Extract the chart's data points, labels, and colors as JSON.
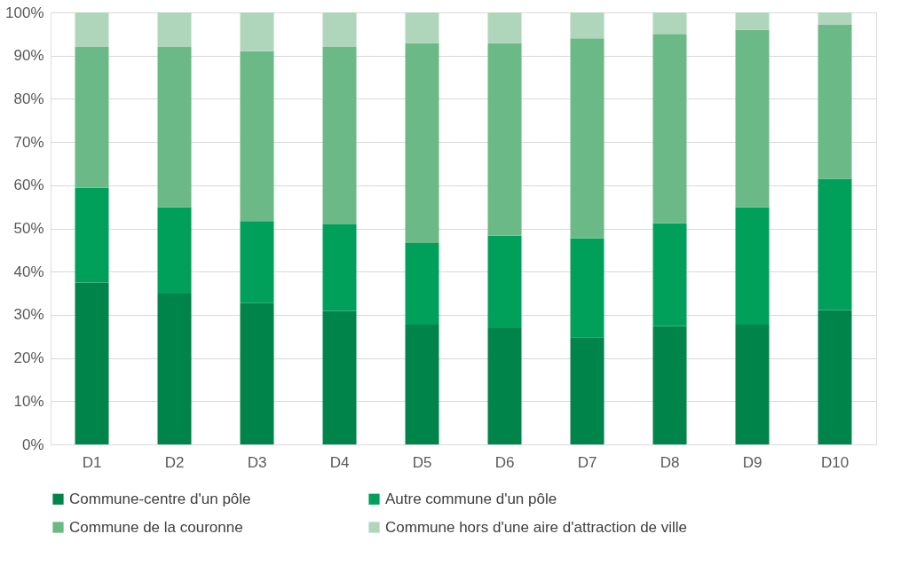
{
  "chart_data": {
    "type": "bar",
    "stacked": true,
    "categories": [
      "D1",
      "D2",
      "D3",
      "D4",
      "D5",
      "D6",
      "D7",
      "D8",
      "D9",
      "D10"
    ],
    "series": [
      {
        "name": "Commune-centre d'un pôle",
        "color": "#00844a",
        "values": [
          37.5,
          34.9,
          32.7,
          30.9,
          27.7,
          26.9,
          24.8,
          27.4,
          27.7,
          31.1
        ]
      },
      {
        "name": "Autre commune d'un pôle",
        "color": "#00a05a",
        "values": [
          21.9,
          20.0,
          19.0,
          20.0,
          18.9,
          21.4,
          22.9,
          23.8,
          27.2,
          30.4
        ]
      },
      {
        "name": "Commune de la couronne",
        "color": "#6bb986",
        "values": [
          32.6,
          37.1,
          39.3,
          41.1,
          46.3,
          44.6,
          46.3,
          43.8,
          41.1,
          35.6
        ]
      },
      {
        "name": "Commune hors d'une aire d'attraction de ville",
        "color": "#afd6bb",
        "values": [
          8.0,
          8.0,
          9.0,
          8.0,
          7.1,
          7.1,
          6.0,
          5.0,
          4.0,
          2.9
        ]
      }
    ],
    "ylim": [
      0,
      100
    ],
    "yticks": [
      {
        "value": 0,
        "label": "0%"
      },
      {
        "value": 10,
        "label": "10%"
      },
      {
        "value": 20,
        "label": "20%"
      },
      {
        "value": 30,
        "label": "30%"
      },
      {
        "value": 40,
        "label": "40%"
      },
      {
        "value": 50,
        "label": "50%"
      },
      {
        "value": 60,
        "label": "60%"
      },
      {
        "value": 70,
        "label": "70%"
      },
      {
        "value": 80,
        "label": "80%"
      },
      {
        "value": 90,
        "label": "90%"
      },
      {
        "value": 100,
        "label": "100%"
      }
    ],
    "grid": "y",
    "legend": "bottom"
  }
}
